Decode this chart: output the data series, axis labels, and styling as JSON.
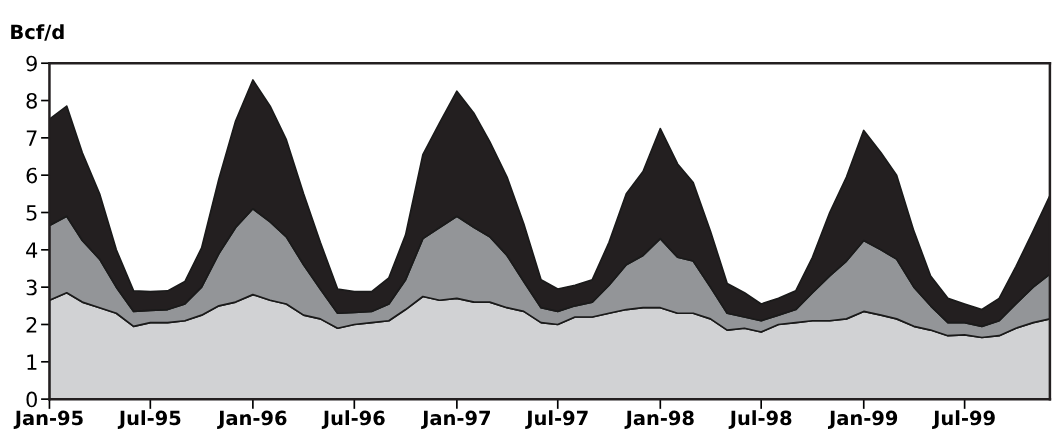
{
  "chart_data": {
    "type": "area",
    "stacked": true,
    "ylabel": "Bcf/d",
    "x": [
      "1995-01",
      "1995-02",
      "1995-03",
      "1995-04",
      "1995-05",
      "1995-06",
      "1995-07",
      "1995-08",
      "1995-09",
      "1995-10",
      "1995-11",
      "1995-12",
      "1996-01",
      "1996-02",
      "1996-03",
      "1996-04",
      "1996-05",
      "1996-06",
      "1996-07",
      "1996-08",
      "1996-09",
      "1996-10",
      "1996-11",
      "1996-12",
      "1997-01",
      "1997-02",
      "1997-03",
      "1997-04",
      "1997-05",
      "1997-06",
      "1997-07",
      "1997-08",
      "1997-09",
      "1997-10",
      "1997-11",
      "1997-12",
      "1998-01",
      "1998-02",
      "1998-03",
      "1998-04",
      "1998-05",
      "1998-06",
      "1998-07",
      "1998-08",
      "1998-09",
      "1998-10",
      "1998-11",
      "1998-12",
      "1999-01",
      "1999-02",
      "1999-03",
      "1999-04",
      "1999-05",
      "1999-06",
      "1999-07",
      "1999-08",
      "1999-09",
      "1999-10",
      "1999-11",
      "1999-12"
    ],
    "series": [
      {
        "color": "#d1d2d4",
        "values": [
          2.65,
          2.85,
          2.6,
          2.45,
          2.3,
          1.95,
          2.05,
          2.05,
          2.1,
          2.25,
          2.5,
          2.6,
          2.8,
          2.65,
          2.55,
          2.25,
          2.15,
          1.9,
          2.0,
          2.05,
          2.1,
          2.4,
          2.75,
          2.65,
          2.7,
          2.6,
          2.6,
          2.45,
          2.35,
          2.05,
          2.0,
          2.2,
          2.2,
          2.3,
          2.4,
          2.45,
          2.45,
          2.3,
          2.3,
          2.15,
          1.85,
          1.9,
          1.8,
          2.0,
          2.05,
          2.1,
          2.1,
          2.15,
          2.35,
          2.25,
          2.15,
          1.95,
          1.85,
          1.7,
          1.72,
          1.65,
          1.7,
          1.9,
          2.05,
          2.15
        ]
      },
      {
        "color": "#939598",
        "values": [
          2.0,
          2.05,
          1.65,
          1.3,
          0.7,
          0.4,
          0.33,
          0.35,
          0.45,
          0.75,
          1.4,
          2.0,
          2.3,
          2.1,
          1.8,
          1.35,
          0.8,
          0.4,
          0.32,
          0.3,
          0.45,
          0.8,
          1.55,
          1.95,
          2.2,
          2.0,
          1.75,
          1.4,
          0.8,
          0.4,
          0.35,
          0.3,
          0.4,
          0.75,
          1.2,
          1.4,
          1.85,
          1.5,
          1.4,
          0.85,
          0.45,
          0.3,
          0.3,
          0.25,
          0.35,
          0.75,
          1.2,
          1.55,
          1.9,
          1.75,
          1.6,
          1.05,
          0.65,
          0.35,
          0.33,
          0.3,
          0.4,
          0.65,
          0.95,
          1.2
        ]
      },
      {
        "color": "#231f20",
        "values": [
          2.85,
          2.95,
          2.35,
          1.75,
          1.0,
          0.55,
          0.5,
          0.5,
          0.6,
          1.05,
          2.0,
          2.85,
          3.45,
          3.1,
          2.6,
          1.9,
          1.25,
          0.65,
          0.56,
          0.53,
          0.7,
          1.2,
          2.25,
          2.8,
          3.35,
          3.05,
          2.55,
          2.1,
          1.55,
          0.75,
          0.6,
          0.55,
          0.6,
          1.15,
          1.9,
          2.25,
          2.95,
          2.5,
          2.1,
          1.5,
          0.8,
          0.65,
          0.45,
          0.45,
          0.5,
          0.95,
          1.7,
          2.25,
          2.95,
          2.6,
          2.25,
          1.5,
          0.8,
          0.65,
          0.5,
          0.45,
          0.6,
          1.0,
          1.5,
          2.1
        ]
      }
    ],
    "xlim": [
      "1995-01",
      "1999-12"
    ],
    "xticks": [
      {
        "value": "1995-01",
        "label": "Jan-95"
      },
      {
        "value": "1995-07",
        "label": "Jul-95"
      },
      {
        "value": "1996-01",
        "label": "Jan-96"
      },
      {
        "value": "1996-07",
        "label": "Jul-96"
      },
      {
        "value": "1997-01",
        "label": "Jan-97"
      },
      {
        "value": "1997-07",
        "label": "Jul-97"
      },
      {
        "value": "1998-01",
        "label": "Jan-98"
      },
      {
        "value": "1998-07",
        "label": "Jul-98"
      },
      {
        "value": "1999-01",
        "label": "Jan-99"
      },
      {
        "value": "1999-07",
        "label": "Jul-99"
      }
    ],
    "ylim": [
      0,
      9
    ],
    "yticks": [
      0,
      1,
      2,
      3,
      4,
      5,
      6,
      7,
      8,
      9
    ],
    "grid": false,
    "legend": false
  }
}
